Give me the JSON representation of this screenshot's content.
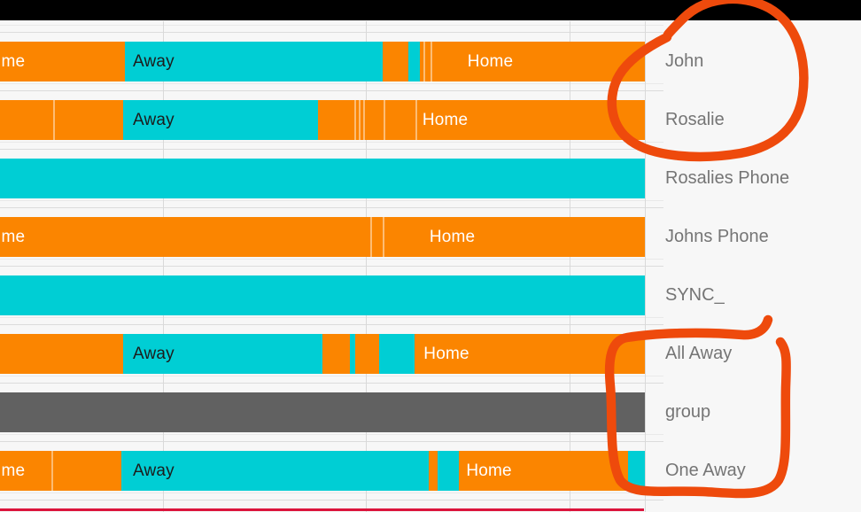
{
  "app": {
    "view": "presence-history-timeline"
  },
  "colors": {
    "background": "#f7f7f7",
    "top_bar": "#000000",
    "home": "#fb8500",
    "away": "#00ced4",
    "unknown": "#616161",
    "entity_label_text": "#757575",
    "annotation": "#ee4a0c",
    "cursor_line": "#dc143c",
    "hgrid_light": "#e9e9e9",
    "hgrid_dark": "#dcdcdc",
    "vgrid": "#d9d9d9"
  },
  "chart_data": {
    "type": "timeline",
    "title": "",
    "x_unit": "percent_of_visible_time_window",
    "x_range": [
      0,
      100
    ],
    "grid": "on",
    "state_labels": {
      "home": "Home",
      "away": "Away"
    },
    "rows": [
      {
        "entity": "John",
        "segments": [
          {
            "state": "home",
            "start": 0,
            "end": 19.4
          },
          {
            "state": "away",
            "start": 19.4,
            "end": 59.3
          },
          {
            "state": "home",
            "start": 59.3,
            "end": 63.3
          },
          {
            "state": "away",
            "start": 63.3,
            "end": 65.1
          },
          {
            "state": "home",
            "start": 65.1,
            "end": 100
          }
        ],
        "labels": [
          {
            "text": "me",
            "x": 0.2,
            "tone": "light"
          },
          {
            "text": "Away",
            "x": 20.6,
            "tone": "dark"
          },
          {
            "text": "Home",
            "x": 72.5,
            "tone": "light"
          }
        ],
        "dividers": [
          65.7,
          66.8
        ]
      },
      {
        "entity": "Rosalie",
        "segments": [
          {
            "state": "home",
            "start": 0,
            "end": 19.1
          },
          {
            "state": "away",
            "start": 19.1,
            "end": 49.3
          },
          {
            "state": "home",
            "start": 49.3,
            "end": 100
          }
        ],
        "labels": [
          {
            "text": "Away",
            "x": 20.6,
            "tone": "dark"
          },
          {
            "text": "Home",
            "x": 65.5,
            "tone": "light"
          }
        ],
        "dividers": [
          8.2,
          54.9,
          55.6,
          56.3,
          59.5,
          64.4
        ]
      },
      {
        "entity": "Rosalies Phone",
        "segments": [
          {
            "state": "away",
            "start": 0,
            "end": 100
          }
        ],
        "labels": [],
        "dividers": []
      },
      {
        "entity": "Johns Phone",
        "segments": [
          {
            "state": "home",
            "start": 0,
            "end": 100
          }
        ],
        "labels": [
          {
            "text": "me",
            "x": 0.2,
            "tone": "light"
          },
          {
            "text": "Home",
            "x": 66.6,
            "tone": "light"
          }
        ],
        "dividers": [
          57.4,
          59.3
        ]
      },
      {
        "entity": "SYNC_",
        "segments": [
          {
            "state": "away",
            "start": 0,
            "end": 100
          }
        ],
        "labels": [],
        "dividers": []
      },
      {
        "entity": "All Away",
        "segments": [
          {
            "state": "home",
            "start": 0,
            "end": 19.1
          },
          {
            "state": "away",
            "start": 19.1,
            "end": 50.0
          },
          {
            "state": "home",
            "start": 50.0,
            "end": 54.3
          },
          {
            "state": "away",
            "start": 54.3,
            "end": 55.1
          },
          {
            "state": "home",
            "start": 55.1,
            "end": 58.8
          },
          {
            "state": "away",
            "start": 58.8,
            "end": 64.3
          },
          {
            "state": "home",
            "start": 64.3,
            "end": 100
          }
        ],
        "labels": [
          {
            "text": "Away",
            "x": 20.6,
            "tone": "dark"
          },
          {
            "text": "Home",
            "x": 65.7,
            "tone": "light"
          }
        ],
        "dividers": []
      },
      {
        "entity": "group",
        "segments": [
          {
            "state": "unknown",
            "start": 0,
            "end": 100
          }
        ],
        "labels": [],
        "dividers": []
      },
      {
        "entity": "One Away",
        "segments": [
          {
            "state": "home",
            "start": 0,
            "end": 18.8
          },
          {
            "state": "away",
            "start": 18.8,
            "end": 66.5
          },
          {
            "state": "home",
            "start": 66.5,
            "end": 67.9
          },
          {
            "state": "away",
            "start": 67.9,
            "end": 71.2
          },
          {
            "state": "home",
            "start": 71.2,
            "end": 97.4
          },
          {
            "state": "away",
            "start": 97.4,
            "end": 100
          }
        ],
        "labels": [
          {
            "text": "me",
            "x": 0.2,
            "tone": "light"
          },
          {
            "text": "Away",
            "x": 20.6,
            "tone": "dark"
          },
          {
            "text": "Home",
            "x": 72.3,
            "tone": "light"
          }
        ],
        "dividers": [
          8.0
        ]
      }
    ],
    "annotations": [
      {
        "name": "hand-drawn-circle-around-john-rosalie-labels"
      },
      {
        "name": "hand-drawn-circle-around-allaway-group-oneaway-labels"
      }
    ]
  }
}
